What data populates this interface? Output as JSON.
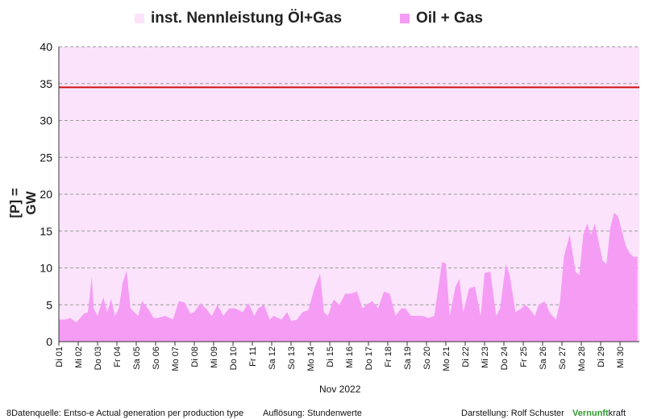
{
  "legend": {
    "capacity_label": "inst. Nennleistung Öl+Gas",
    "capacity_color": "#fbe3fb",
    "series_label": "Oil + Gas",
    "series_color": "#f59cf5"
  },
  "footer": {
    "source": "8Datenquelle: Entso-e  Actual generation per production type",
    "resolution": "Auflösung: Stundenwerte",
    "author": "Darstellung:  Rolf Schuster",
    "brand_part1": "Vernunft",
    "brand_part2": "kraft"
  },
  "chart_data": {
    "type": "area",
    "title": "",
    "xlabel": "Nov 2022",
    "ylabel": "[P]  = GW",
    "ylim": [
      0,
      40
    ],
    "yticks": [
      0,
      5,
      10,
      15,
      20,
      25,
      30,
      35,
      40
    ],
    "grid": "horizontal dashed",
    "legend_position": "top",
    "capacity_line_gw": 34.5,
    "capacity_line_color": "#cc1111",
    "days": [
      "Di 01",
      "Mi 02",
      "Do 03",
      "Fr 04",
      "Sa 05",
      "So 06",
      "Mo 07",
      "Di 08",
      "Mi 09",
      "Do 10",
      "Fr 11",
      "Sa 12",
      "So 13",
      "Mo 14",
      "Di 15",
      "Mi 16",
      "Do 17",
      "Fr 18",
      "Sa 19",
      "So 20",
      "Mo 21",
      "Di 22",
      "Mi 23",
      "Do 24",
      "Fr 25",
      "Sa 26",
      "So 27",
      "Mo 28",
      "Di 29",
      "Mi 30"
    ],
    "series": [
      {
        "name": "Oil + Gas",
        "x_unit": "day of Nov 2022 (fractional)",
        "x": [
          1.0,
          1.3,
          1.6,
          1.9,
          2.3,
          2.5,
          2.7,
          2.8,
          3.0,
          3.3,
          3.5,
          3.7,
          3.9,
          4.1,
          4.3,
          4.5,
          4.7,
          4.9,
          5.1,
          5.3,
          5.6,
          5.9,
          6.1,
          6.5,
          6.9,
          7.2,
          7.5,
          7.8,
          8.0,
          8.3,
          8.6,
          8.9,
          9.2,
          9.5,
          9.8,
          10.1,
          10.5,
          10.8,
          11.1,
          11.3,
          11.6,
          11.9,
          12.1,
          12.5,
          12.8,
          13.0,
          13.3,
          13.6,
          13.9,
          14.2,
          14.5,
          14.7,
          14.9,
          15.2,
          15.5,
          15.8,
          16.1,
          16.4,
          16.7,
          16.9,
          17.2,
          17.5,
          17.8,
          18.1,
          18.4,
          18.7,
          18.9,
          19.2,
          19.5,
          19.8,
          20.1,
          20.4,
          20.8,
          21.0,
          21.2,
          21.5,
          21.7,
          21.9,
          22.2,
          22.5,
          22.8,
          23.0,
          23.3,
          23.6,
          23.8,
          24.1,
          24.3,
          24.6,
          24.9,
          25.1,
          25.3,
          25.6,
          25.8,
          26.1,
          26.4,
          26.7,
          26.9,
          27.1,
          27.4,
          27.7,
          27.9,
          28.1,
          28.3,
          28.5,
          28.7,
          28.9,
          29.1,
          29.3,
          29.5,
          29.7,
          29.9,
          30.1,
          30.3,
          30.5,
          30.7,
          30.9
        ],
        "values": [
          3.0,
          3.0,
          3.2,
          2.6,
          3.8,
          4.0,
          8.8,
          4.5,
          3.5,
          6.0,
          4.0,
          5.8,
          3.5,
          4.5,
          8.0,
          9.6,
          4.5,
          4.0,
          3.5,
          5.5,
          4.5,
          3.2,
          3.2,
          3.5,
          3.0,
          5.5,
          5.3,
          3.8,
          4.0,
          5.2,
          4.5,
          3.5,
          5.0,
          3.5,
          4.5,
          4.5,
          4.0,
          5.2,
          3.5,
          4.5,
          5.0,
          3.0,
          3.5,
          3.0,
          4.0,
          2.8,
          3.0,
          4.0,
          4.3,
          7.2,
          9.2,
          4.0,
          3.5,
          5.7,
          5.0,
          6.5,
          6.5,
          6.8,
          4.5,
          5.0,
          5.5,
          4.5,
          6.8,
          6.5,
          3.5,
          4.5,
          4.5,
          3.5,
          3.5,
          3.5,
          3.2,
          3.5,
          10.8,
          10.6,
          3.5,
          7.5,
          8.5,
          4.0,
          7.2,
          7.5,
          3.5,
          9.3,
          9.5,
          3.5,
          4.5,
          10.5,
          9.0,
          4.0,
          4.5,
          5.0,
          4.5,
          3.5,
          5.0,
          5.5,
          3.8,
          3.0,
          5.5,
          11.5,
          14.5,
          9.5,
          9.0,
          14.5,
          16.0,
          14.5,
          16.0,
          13.5,
          11.0,
          10.5,
          15.5,
          17.5,
          17.0,
          15.0,
          13.0,
          12.0,
          11.5,
          11.5
        ]
      }
    ]
  }
}
